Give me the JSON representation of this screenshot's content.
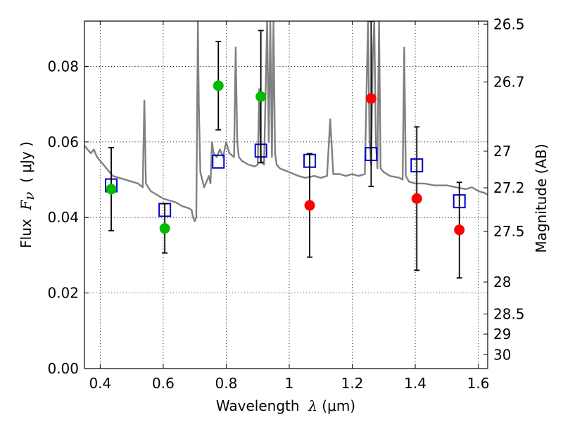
{
  "chart_data": {
    "type": "scatter",
    "xlabel": {
      "prefix": "Wavelength  ",
      "symbol": "λ",
      "units": " (μm)"
    },
    "ylabel": {
      "prefix": "Flux  ",
      "symbol": "F",
      "sub": "ν",
      "units": "  ( μJy )"
    },
    "ylabel_right": "Magnitude (AB)",
    "xlim": [
      0.35,
      1.63
    ],
    "ylim": [
      0.0,
      0.092
    ],
    "grid": true,
    "x_ticks": [
      {
        "value": 0.4,
        "label": "0.4"
      },
      {
        "value": 0.6,
        "label": "0.6"
      },
      {
        "value": 0.8,
        "label": "0.8"
      },
      {
        "value": 1.0,
        "label": "1"
      },
      {
        "value": 1.2,
        "label": "1.2"
      },
      {
        "value": 1.4,
        "label": "1.4"
      },
      {
        "value": 1.6,
        "label": "1.6"
      }
    ],
    "y_ticks": [
      {
        "value": 0.0,
        "label": "0.00"
      },
      {
        "value": 0.02,
        "label": "0.02"
      },
      {
        "value": 0.04,
        "label": "0.04"
      },
      {
        "value": 0.06,
        "label": "0.06"
      },
      {
        "value": 0.08,
        "label": "0.08"
      }
    ],
    "y_ticks_right": [
      {
        "value": 26.5,
        "label": "26.5"
      },
      {
        "value": 26.7,
        "label": "26.7"
      },
      {
        "value": 27.0,
        "label": "27"
      },
      {
        "value": 27.2,
        "label": "27.2"
      },
      {
        "value": 27.5,
        "label": "27.5"
      },
      {
        "value": 28.0,
        "label": "28"
      },
      {
        "value": 28.5,
        "label": "28.5"
      },
      {
        "value": 29.0,
        "label": "29"
      },
      {
        "value": 30.0,
        "label": "30"
      }
    ],
    "colors": {
      "sed": "#808080",
      "model": "#0000cc",
      "optical": "#00bb00",
      "nir": "#ff0000",
      "errorbar": "#000000",
      "grid": "#000000"
    },
    "series": [
      {
        "marker": "line",
        "color": "#808080",
        "x": [
          0.35,
          0.36,
          0.37,
          0.38,
          0.39,
          0.4,
          0.42,
          0.44,
          0.46,
          0.48,
          0.5,
          0.52,
          0.535,
          0.54,
          0.545,
          0.56,
          0.58,
          0.6,
          0.62,
          0.64,
          0.66,
          0.68,
          0.69,
          0.695,
          0.7,
          0.705,
          0.71,
          0.713,
          0.718,
          0.73,
          0.745,
          0.75,
          0.755,
          0.76,
          0.77,
          0.78,
          0.79,
          0.8,
          0.81,
          0.825,
          0.83,
          0.835,
          0.84,
          0.85,
          0.87,
          0.89,
          0.9,
          0.905,
          0.91,
          0.92,
          0.93,
          0.935,
          0.94,
          0.945,
          0.95,
          0.955,
          0.96,
          0.97,
          1.0,
          1.03,
          1.05,
          1.08,
          1.1,
          1.12,
          1.13,
          1.14,
          1.16,
          1.18,
          1.2,
          1.22,
          1.24,
          1.25,
          1.255,
          1.26,
          1.265,
          1.27,
          1.275,
          1.28,
          1.285,
          1.29,
          1.3,
          1.32,
          1.35,
          1.36,
          1.365,
          1.37,
          1.38,
          1.4,
          1.43,
          1.46,
          1.5,
          1.53,
          1.56,
          1.58,
          1.6,
          1.62,
          1.63
        ],
        "y": [
          0.059,
          0.058,
          0.057,
          0.058,
          0.056,
          0.055,
          0.053,
          0.051,
          0.0505,
          0.05,
          0.0495,
          0.049,
          0.048,
          0.071,
          0.049,
          0.047,
          0.046,
          0.045,
          0.0445,
          0.044,
          0.043,
          0.0425,
          0.042,
          0.04,
          0.039,
          0.04,
          0.092,
          0.07,
          0.052,
          0.048,
          0.051,
          0.049,
          0.06,
          0.057,
          0.056,
          0.058,
          0.056,
          0.06,
          0.057,
          0.056,
          0.085,
          0.06,
          0.056,
          0.055,
          0.054,
          0.0535,
          0.054,
          0.074,
          0.055,
          0.054,
          0.092,
          0.06,
          0.092,
          0.056,
          0.092,
          0.057,
          0.054,
          0.053,
          0.052,
          0.051,
          0.0505,
          0.051,
          0.0505,
          0.051,
          0.066,
          0.0515,
          0.0515,
          0.051,
          0.0515,
          0.051,
          0.0515,
          0.092,
          0.06,
          0.054,
          0.082,
          0.092,
          0.06,
          0.053,
          0.092,
          0.053,
          0.052,
          0.051,
          0.0505,
          0.05,
          0.085,
          0.051,
          0.0495,
          0.049,
          0.049,
          0.0485,
          0.0485,
          0.048,
          0.0475,
          0.048,
          0.047,
          0.0465,
          0.046
        ]
      },
      {
        "marker": "open-square",
        "color": "#0000cc",
        "x": [
          0.435,
          0.605,
          0.775,
          0.91,
          1.065,
          1.26,
          1.405,
          1.54
        ],
        "y": [
          0.0485,
          0.042,
          0.0548,
          0.0577,
          0.055,
          0.0568,
          0.0538,
          0.0443
        ]
      },
      {
        "marker": "filled-circle",
        "color": "#00bb00",
        "x": [
          0.435,
          0.605,
          0.775,
          0.91
        ],
        "y": [
          0.0475,
          0.0371,
          0.0749,
          0.072
        ],
        "err_low": [
          0.0365,
          0.0306,
          0.0632,
          0.0545
        ],
        "err_high": [
          0.0585,
          0.0437,
          0.0866,
          0.0895
        ]
      },
      {
        "marker": "filled-circle",
        "color": "#ff0000",
        "x": [
          1.065,
          1.26,
          1.405,
          1.54
        ],
        "y": [
          0.0432,
          0.0715,
          0.045,
          0.0367
        ],
        "err_low": [
          0.0295,
          0.0482,
          0.026,
          0.024
        ],
        "err_high": [
          0.0569,
          0.092,
          0.064,
          0.0493
        ]
      }
    ]
  }
}
